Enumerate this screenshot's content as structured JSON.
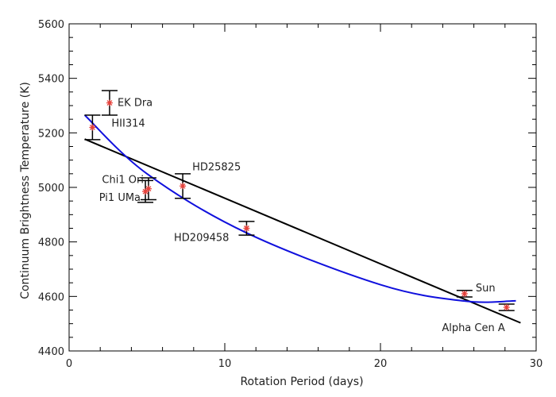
{
  "chart_data": {
    "type": "scatter",
    "title": "",
    "xlabel": "Rotation Period (days)",
    "ylabel": "Continuum Brightness Temperature (K)",
    "xlim": [
      0,
      30
    ],
    "ylim": [
      4400,
      5600
    ],
    "xticks": [
      0,
      10,
      20,
      30
    ],
    "yticks": [
      4400,
      4600,
      4800,
      5000,
      5200,
      5400,
      5600
    ],
    "grid": false,
    "colors": {
      "points": "#e8403a",
      "errorbars": "#000000",
      "linear_fit": "#000000",
      "quadratic_fit": "#1010dd",
      "frame": "#000000"
    },
    "points": [
      {
        "label": "EK Dra",
        "x": 2.6,
        "y": 5310,
        "yerr": 45
      },
      {
        "label": "HII314",
        "x": 1.5,
        "y": 5220,
        "yerr": 45
      },
      {
        "label": "Chi1 Ori",
        "x": 5.1,
        "y": 4995,
        "yerr": 40
      },
      {
        "label": "Pi1 UMa",
        "x": 4.9,
        "y": 4985,
        "yerr": 40
      },
      {
        "label": "HD25825",
        "x": 7.3,
        "y": 5005,
        "yerr": 45
      },
      {
        "label": "HD209458",
        "x": 11.4,
        "y": 4850,
        "yerr": 25
      },
      {
        "label": "Sun",
        "x": 25.4,
        "y": 4610,
        "yerr": 12
      },
      {
        "label": "Alpha Cen A",
        "x": 28.1,
        "y": 4560,
        "yerr": 12
      }
    ],
    "series": [
      {
        "type": "line",
        "color": "#000000",
        "x": [
          1,
          29
        ],
        "y": [
          5177,
          4503
        ]
      },
      {
        "type": "curve",
        "color": "#1010dd",
        "x": [
          1,
          5,
          11.4,
          20,
          25.4,
          28.7
        ],
        "y": [
          5265,
          5050,
          4833,
          4643,
          4583,
          4584
        ]
      }
    ]
  }
}
